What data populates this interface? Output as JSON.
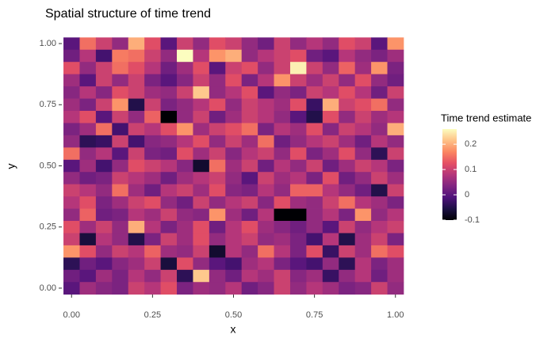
{
  "chart_data": {
    "type": "heatmap",
    "title": "Spatial structure of time trend",
    "x_label": "x",
    "y_label": "y",
    "legend_title": "Time trend estimate",
    "x": [
      0,
      0.05,
      0.1,
      0.15,
      0.2,
      0.25,
      0.3,
      0.35,
      0.4,
      0.45,
      0.5,
      0.55,
      0.6,
      0.65,
      0.7,
      0.75,
      0.8,
      0.85,
      0.9,
      0.95,
      1
    ],
    "y": [
      1,
      0.95,
      0.9,
      0.85,
      0.8,
      0.75,
      0.7,
      0.65,
      0.6,
      0.55,
      0.5,
      0.45,
      0.4,
      0.35,
      0.3,
      0.25,
      0.2,
      0.15,
      0.1,
      0.05,
      0
    ],
    "z": [
      [
        0.0,
        0.15,
        0.1,
        0.05,
        0.2,
        0.12,
        0.0,
        0.1,
        0.05,
        0.12,
        0.1,
        0.05,
        0.02,
        0.1,
        0.05,
        0.08,
        0.05,
        0.12,
        0.1,
        0.0,
        0.18
      ],
      [
        0.02,
        0.08,
        -0.02,
        0.16,
        0.15,
        0.1,
        0.05,
        0.26,
        0.08,
        0.18,
        0.2,
        0.05,
        0.08,
        0.1,
        0.12,
        0.02,
        0.0,
        0.08,
        0.05,
        0.03,
        0.06
      ],
      [
        0.12,
        0.05,
        0.1,
        0.15,
        0.12,
        0.08,
        0.02,
        0.06,
        0.12,
        0.0,
        0.1,
        0.12,
        0.05,
        0.1,
        0.25,
        0.1,
        0.05,
        0.14,
        0.06,
        0.18,
        0.03
      ],
      [
        0.06,
        0.0,
        0.1,
        0.05,
        0.1,
        0.03,
        0.0,
        0.04,
        0.1,
        0.05,
        0.12,
        0.03,
        0.08,
        0.18,
        0.1,
        0.06,
        0.1,
        0.05,
        0.12,
        0.05,
        0.02
      ],
      [
        0.04,
        0.08,
        0.04,
        0.12,
        0.1,
        0.06,
        0.05,
        0.1,
        0.22,
        0.05,
        0.08,
        0.12,
        0.0,
        0.05,
        0.03,
        0.1,
        0.08,
        0.12,
        0.08,
        0.02,
        0.1
      ],
      [
        0.06,
        0.03,
        0.1,
        0.18,
        -0.05,
        0.1,
        0.03,
        0.05,
        0.08,
        0.12,
        0.05,
        0.1,
        0.08,
        0.06,
        0.12,
        -0.03,
        0.2,
        0.1,
        0.12,
        0.15,
        0.05
      ],
      [
        0.08,
        0.12,
        0.0,
        0.1,
        0.05,
        0.14,
        -0.1,
        0.05,
        0.1,
        0.02,
        0.06,
        0.1,
        0.08,
        0.05,
        0.0,
        -0.05,
        0.12,
        0.05,
        0.1,
        0.06,
        0.08
      ],
      [
        0.03,
        0.06,
        0.15,
        -0.02,
        0.1,
        0.08,
        0.12,
        0.18,
        0.06,
        0.1,
        0.12,
        0.15,
        0.03,
        0.08,
        0.06,
        0.12,
        0.04,
        0.1,
        0.08,
        0.05,
        0.2
      ],
      [
        0.05,
        -0.04,
        -0.03,
        0.1,
        -0.02,
        0.04,
        0.05,
        0.08,
        0.12,
        0.05,
        0.1,
        0.06,
        0.15,
        0.02,
        0.05,
        0.08,
        0.1,
        0.06,
        0.02,
        0.08,
        0.05
      ],
      [
        0.15,
        0.05,
        0.08,
        0.0,
        0.1,
        0.03,
        0.02,
        0.12,
        0.06,
        0.1,
        0.04,
        0.08,
        0.1,
        0.05,
        0.12,
        0.03,
        0.06,
        0.12,
        0.05,
        -0.04,
        0.1
      ],
      [
        0.0,
        0.06,
        -0.02,
        0.05,
        0.12,
        0.1,
        0.08,
        0.04,
        -0.07,
        0.15,
        0.06,
        0.1,
        0.02,
        0.08,
        0.05,
        0.1,
        0.02,
        0.06,
        0.1,
        0.08,
        0.03
      ],
      [
        0.05,
        0.02,
        0.03,
        0.1,
        0.08,
        0.06,
        0.02,
        0.06,
        0.08,
        0.1,
        0.05,
        0.0,
        0.1,
        0.06,
        0.08,
        0.03,
        0.12,
        0.02,
        0.05,
        0.1,
        0.06
      ],
      [
        0.1,
        0.08,
        0.05,
        0.15,
        0.06,
        0.02,
        0.08,
        0.1,
        0.06,
        0.12,
        0.04,
        0.03,
        0.08,
        0.05,
        0.14,
        0.14,
        0.08,
        0.05,
        0.02,
        -0.05,
        0.1
      ],
      [
        0.08,
        0.12,
        0.03,
        0.06,
        0.1,
        0.12,
        0.05,
        0.02,
        0.1,
        0.05,
        0.08,
        0.1,
        0.04,
        0.12,
        0.06,
        0.05,
        0.1,
        0.15,
        0.08,
        0.06,
        0.03
      ],
      [
        0.05,
        0.14,
        0.02,
        0.03,
        0.08,
        0.06,
        0.1,
        0.05,
        0.04,
        0.18,
        0.06,
        0.02,
        0.08,
        -0.1,
        -0.1,
        0.05,
        0.08,
        0.03,
        0.18,
        0.05,
        0.08
      ],
      [
        0.12,
        0.06,
        0.1,
        0.05,
        0.2,
        0.08,
        0.03,
        0.06,
        0.12,
        0.02,
        0.08,
        0.12,
        0.06,
        0.04,
        0.02,
        0.05,
        0.0,
        0.1,
        0.05,
        0.08,
        0.1
      ],
      [
        0.1,
        -0.06,
        0.08,
        0.05,
        -0.05,
        0.03,
        0.1,
        0.06,
        0.12,
        0.05,
        0.08,
        0.1,
        0.05,
        0.06,
        0.03,
        -0.02,
        0.08,
        -0.05,
        0.06,
        0.1,
        0.03
      ],
      [
        0.18,
        0.12,
        0.05,
        0.1,
        0.08,
        0.14,
        0.06,
        0.05,
        0.1,
        -0.07,
        0.08,
        0.05,
        0.15,
        0.08,
        0.03,
        0.12,
        -0.03,
        0.1,
        0.06,
        0.15,
        0.12
      ],
      [
        -0.04,
        0.02,
        0.0,
        0.04,
        0.06,
        0.1,
        -0.06,
        0.12,
        0.05,
        0.0,
        -0.02,
        0.06,
        0.08,
        0.03,
        0.0,
        -0.02,
        0.05,
        -0.04,
        0.08,
        0.03,
        0.06
      ],
      [
        0.02,
        0.0,
        0.06,
        0.03,
        0.08,
        0.05,
        0.1,
        -0.04,
        0.22,
        0.05,
        0.02,
        0.08,
        0.06,
        0.1,
        0.04,
        0.06,
        -0.03,
        0.05,
        0.08,
        0.02,
        0.06
      ],
      [
        0.0,
        0.06,
        0.04,
        0.03,
        0.1,
        0.08,
        0.12,
        0.03,
        0.06,
        0.05,
        0.08,
        0.02,
        0.04,
        0.1,
        0.05,
        0.08,
        0.06,
        0.03,
        0.04,
        0.1,
        0.05
      ]
    ],
    "xlim": [
      -0.03,
      1.03
    ],
    "ylim": [
      -0.026,
      1.026
    ],
    "xticks": [
      {
        "value": 0,
        "label": "0.00"
      },
      {
        "value": 0.25,
        "label": "0.25"
      },
      {
        "value": 0.5,
        "label": "0.50"
      },
      {
        "value": 0.75,
        "label": "0.75"
      },
      {
        "value": 1,
        "label": "1.00"
      }
    ],
    "yticks": [
      {
        "value": 0,
        "label": "0.00"
      },
      {
        "value": 0.25,
        "label": "0.25"
      },
      {
        "value": 0.5,
        "label": "0.50"
      },
      {
        "value": 0.75,
        "label": "0.75"
      },
      {
        "value": 1,
        "label": "1.00"
      }
    ],
    "zlim": [
      -0.1,
      0.26
    ],
    "zticks": [
      -0.1,
      0,
      0.1,
      0.2
    ],
    "palette": [
      "#000004",
      "#1c1044",
      "#4f127b",
      "#812581",
      "#b5367a",
      "#e55064",
      "#fb8761",
      "#fec287",
      "#fcfdbf"
    ]
  }
}
